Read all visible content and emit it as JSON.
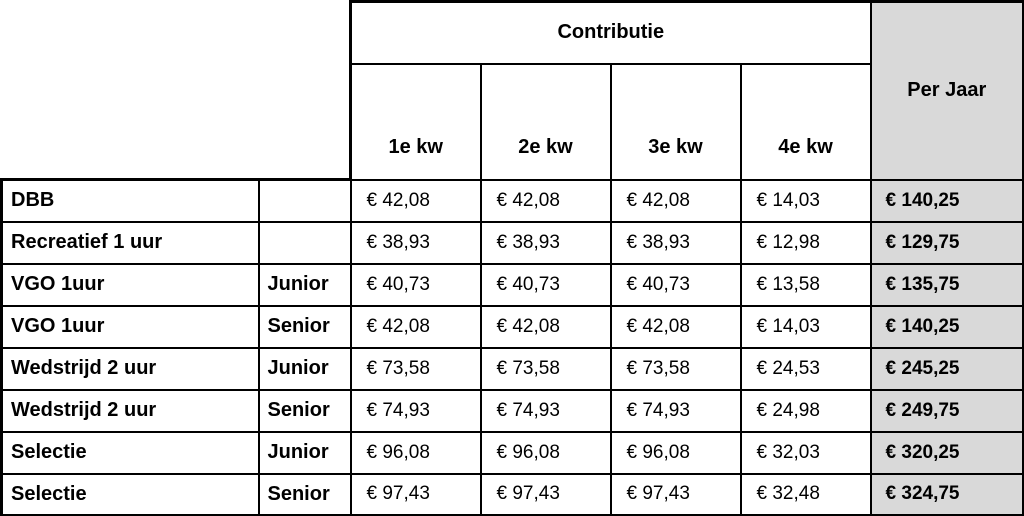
{
  "table": {
    "header": {
      "contributie_label": "Contributie",
      "per_jaar_label": "Per Jaar",
      "quarter_labels": [
        "1e kw",
        "2e kw",
        "3e kw",
        "4e kw"
      ]
    },
    "rows": [
      {
        "label": "DBB",
        "category": "",
        "q": [
          "€ 42,08",
          "€ 42,08",
          "€ 42,08",
          "€ 14,03"
        ],
        "per_jaar": "€ 140,25"
      },
      {
        "label": "Recreatief 1 uur",
        "category": "",
        "q": [
          "€ 38,93",
          "€ 38,93",
          "€ 38,93",
          "€ 12,98"
        ],
        "per_jaar": "€ 129,75"
      },
      {
        "label": "VGO 1uur",
        "category": "Junior",
        "q": [
          "€ 40,73",
          "€ 40,73",
          "€ 40,73",
          "€ 13,58"
        ],
        "per_jaar": "€ 135,75"
      },
      {
        "label": "VGO 1uur",
        "category": "Senior",
        "q": [
          "€ 42,08",
          "€ 42,08",
          "€ 42,08",
          "€ 14,03"
        ],
        "per_jaar": "€ 140,25"
      },
      {
        "label": "Wedstrijd 2 uur",
        "category": "Junior",
        "q": [
          "€ 73,58",
          "€ 73,58",
          "€ 73,58",
          "€ 24,53"
        ],
        "per_jaar": "€ 245,25"
      },
      {
        "label": "Wedstrijd 2 uur",
        "category": "Senior",
        "q": [
          "€ 74,93",
          "€ 74,93",
          "€ 74,93",
          "€ 24,98"
        ],
        "per_jaar": "€ 249,75"
      },
      {
        "label": "Selectie",
        "category": "Junior",
        "q": [
          "€ 96,08",
          "€ 96,08",
          "€ 96,08",
          "€ 32,03"
        ],
        "per_jaar": "€ 320,25"
      },
      {
        "label": "Selectie",
        "category": "Senior",
        "q": [
          "€ 97,43",
          "€ 97,43",
          "€ 97,43",
          "€ 32,48"
        ],
        "per_jaar": "€ 324,75"
      }
    ],
    "colors": {
      "per_jaar_bg": "#d9d9d9",
      "border": "#000000",
      "text": "#000000"
    }
  }
}
